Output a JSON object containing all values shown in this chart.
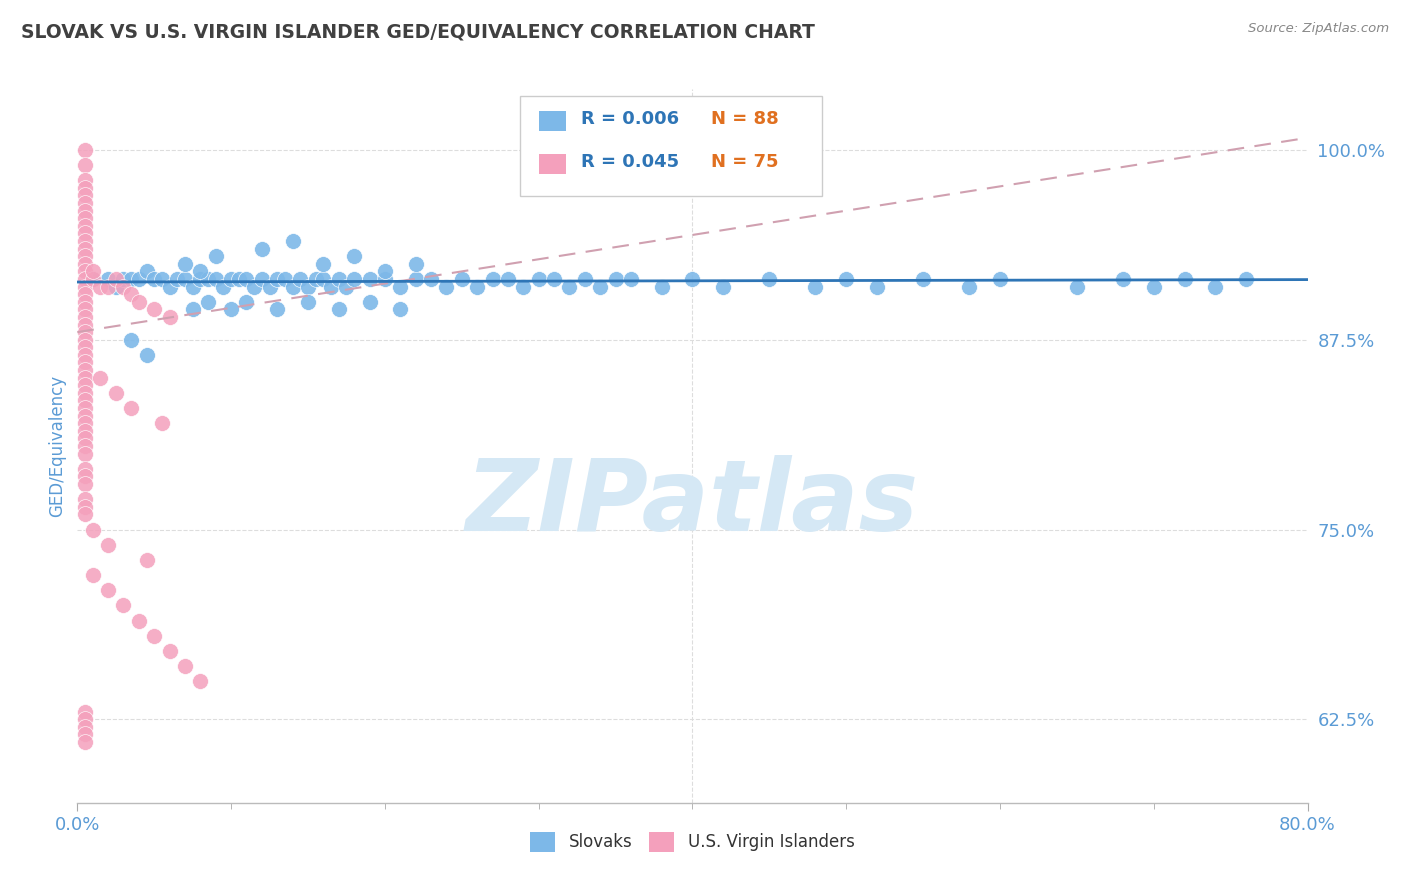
{
  "title": "SLOVAK VS U.S. VIRGIN ISLANDER GED/EQUIVALENCY CORRELATION CHART",
  "source_text": "Source: ZipAtlas.com",
  "ylabel": "GED/Equivalency",
  "yticks": [
    62.5,
    75.0,
    87.5,
    100.0
  ],
  "ytick_labels": [
    "62.5%",
    "75.0%",
    "87.5%",
    "100.0%"
  ],
  "xlim": [
    0.0,
    80.0
  ],
  "ylim": [
    57.0,
    104.0
  ],
  "legend_r1": "R = 0.006",
  "legend_n1": "N = 88",
  "legend_r2": "R = 0.045",
  "legend_n2": "N = 75",
  "color_blue": "#7DB8E8",
  "color_pink": "#F4A0BC",
  "color_trendline_blue": "#2E75B6",
  "color_trendline_pink": "#D0A0B0",
  "watermark": "ZIPatlas",
  "watermark_color": "#D5E8F5",
  "title_color": "#404040",
  "axis_label_color": "#5B9BD5",
  "source_color": "#888888",
  "blue_scatter_x": [
    1.0,
    2.0,
    2.5,
    3.0,
    3.5,
    4.0,
    4.5,
    5.0,
    5.5,
    6.0,
    6.5,
    7.0,
    7.5,
    8.0,
    8.5,
    9.0,
    9.5,
    10.0,
    10.5,
    11.0,
    11.5,
    12.0,
    12.5,
    13.0,
    13.5,
    14.0,
    14.5,
    15.0,
    15.5,
    16.0,
    16.5,
    17.0,
    17.5,
    18.0,
    19.0,
    20.0,
    21.0,
    22.0,
    23.0,
    24.0,
    25.0,
    26.0,
    27.0,
    28.0,
    29.0,
    30.0,
    31.0,
    32.0,
    33.0,
    34.0,
    35.0,
    36.0,
    38.0,
    40.0,
    42.0,
    45.0,
    48.0,
    50.0,
    52.0,
    55.0,
    58.0,
    60.0,
    65.0,
    68.0,
    70.0,
    72.0,
    74.0,
    76.0,
    7.0,
    8.0,
    9.0,
    12.0,
    14.0,
    16.0,
    18.0,
    20.0,
    22.0,
    7.5,
    8.5,
    10.0,
    11.0,
    13.0,
    15.0,
    17.0,
    19.0,
    21.0,
    3.5,
    4.5
  ],
  "blue_scatter_y": [
    91.5,
    91.5,
    91.0,
    91.5,
    91.5,
    91.5,
    92.0,
    91.5,
    91.5,
    91.0,
    91.5,
    91.5,
    91.0,
    91.5,
    91.5,
    91.5,
    91.0,
    91.5,
    91.5,
    91.5,
    91.0,
    91.5,
    91.0,
    91.5,
    91.5,
    91.0,
    91.5,
    91.0,
    91.5,
    91.5,
    91.0,
    91.5,
    91.0,
    91.5,
    91.5,
    91.5,
    91.0,
    91.5,
    91.5,
    91.0,
    91.5,
    91.0,
    91.5,
    91.5,
    91.0,
    91.5,
    91.5,
    91.0,
    91.5,
    91.0,
    91.5,
    91.5,
    91.0,
    91.5,
    91.0,
    91.5,
    91.0,
    91.5,
    91.0,
    91.5,
    91.0,
    91.5,
    91.0,
    91.5,
    91.0,
    91.5,
    91.0,
    91.5,
    92.5,
    92.0,
    93.0,
    93.5,
    94.0,
    92.5,
    93.0,
    92.0,
    92.5,
    89.5,
    90.0,
    89.5,
    90.0,
    89.5,
    90.0,
    89.5,
    90.0,
    89.5,
    87.5,
    86.5
  ],
  "pink_scatter_x": [
    0.5,
    0.5,
    0.5,
    0.5,
    0.5,
    0.5,
    0.5,
    0.5,
    0.5,
    0.5,
    0.5,
    0.5,
    0.5,
    0.5,
    0.5,
    0.5,
    0.5,
    0.5,
    0.5,
    0.5,
    0.5,
    0.5,
    0.5,
    0.5,
    0.5,
    0.5,
    0.5,
    0.5,
    0.5,
    0.5,
    0.5,
    0.5,
    0.5,
    0.5,
    0.5,
    0.5,
    0.5,
    0.5,
    0.5,
    0.5,
    0.5,
    0.5,
    0.5,
    0.5,
    0.5,
    1.0,
    1.0,
    1.5,
    2.0,
    2.5,
    3.0,
    3.5,
    4.0,
    5.0,
    6.0,
    1.5,
    2.5,
    3.5,
    5.5,
    1.0,
    2.0,
    4.5,
    1.0,
    2.0,
    3.0,
    4.0,
    5.0,
    6.0,
    7.0,
    8.0,
    0.5,
    0.5,
    0.5,
    0.5,
    0.5
  ],
  "pink_scatter_y": [
    100.0,
    99.0,
    98.0,
    97.5,
    97.0,
    96.5,
    96.0,
    95.5,
    95.0,
    94.5,
    94.0,
    93.5,
    93.0,
    92.5,
    92.0,
    91.5,
    91.0,
    90.5,
    90.0,
    89.5,
    89.0,
    88.5,
    88.0,
    87.5,
    87.0,
    86.5,
    86.0,
    85.5,
    85.0,
    84.5,
    84.0,
    83.5,
    83.0,
    82.5,
    82.0,
    81.5,
    81.0,
    80.5,
    80.0,
    79.0,
    78.5,
    78.0,
    77.0,
    76.5,
    76.0,
    91.5,
    92.0,
    91.0,
    91.0,
    91.5,
    91.0,
    90.5,
    90.0,
    89.5,
    89.0,
    85.0,
    84.0,
    83.0,
    82.0,
    75.0,
    74.0,
    73.0,
    72.0,
    71.0,
    70.0,
    69.0,
    68.0,
    67.0,
    66.0,
    65.0,
    63.0,
    62.5,
    62.0,
    61.5,
    61.0
  ]
}
